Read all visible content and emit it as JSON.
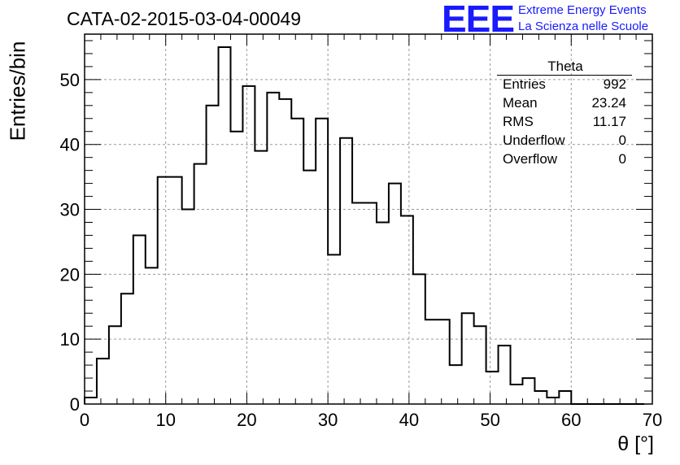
{
  "header": {
    "title": "CATA-02-2015-03-04-00049",
    "logo": "EEE",
    "logo_line1": "Extreme Energy Events",
    "logo_line2": "La Scienza nelle Scuole",
    "logo_color": "#1a1aff"
  },
  "stats": {
    "title": "Theta",
    "rows": [
      {
        "name": "Entries",
        "value": "992"
      },
      {
        "name": "Mean",
        "value": "23.24"
      },
      {
        "name": "RMS",
        "value": "11.17"
      },
      {
        "name": "Underflow",
        "value": "0"
      },
      {
        "name": "Overflow",
        "value": "0"
      }
    ]
  },
  "chart_data": {
    "type": "bar",
    "subtype": "histogram-step",
    "title": "CATA-02-2015-03-04-00049",
    "xlabel": "θ [°]",
    "ylabel": "Entries/bin",
    "xlim": [
      0,
      70
    ],
    "ylim": [
      0,
      57
    ],
    "grid": true,
    "bin_width": 1.5,
    "bin_edges_start": 0,
    "values": [
      1,
      7,
      12,
      17,
      26,
      21,
      35,
      35,
      30,
      37,
      46,
      55,
      42,
      49,
      39,
      48,
      47,
      44,
      36,
      44,
      23,
      41,
      31,
      31,
      28,
      34,
      29,
      20,
      13,
      13,
      6,
      14,
      12,
      5,
      9,
      3,
      4,
      2,
      1,
      2,
      0,
      0,
      0,
      0,
      0,
      0
    ],
    "xticks": [
      0,
      10,
      20,
      30,
      40,
      50,
      60,
      70
    ],
    "yticks": [
      0,
      10,
      20,
      30,
      40,
      50
    ],
    "line_color": "#000000"
  }
}
